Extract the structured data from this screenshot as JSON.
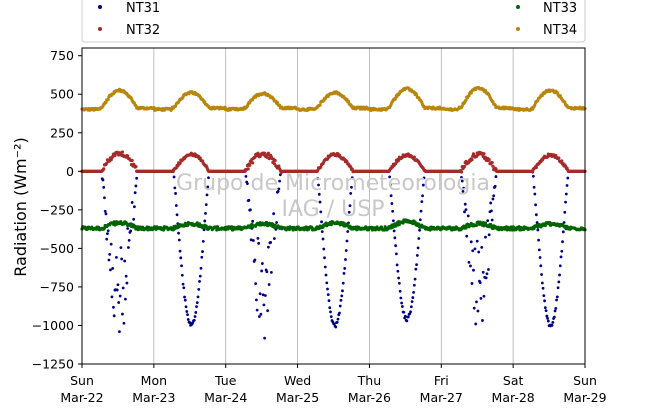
{
  "chart_data": {
    "type": "scatter",
    "ylabel": "Radiation (Wm⁻²)",
    "ylim": [
      -1250,
      800
    ],
    "yticks": [
      -1250,
      -1000,
      -750,
      -500,
      -250,
      0,
      250,
      500,
      750
    ],
    "ytick_labels": [
      "−1250",
      "−1000",
      "−750",
      "−500",
      "−250",
      "0",
      "250",
      "500",
      "750"
    ],
    "xlim_days": [
      0,
      7
    ],
    "xticks": [
      {
        "day": "Sun",
        "date": "Mar-22"
      },
      {
        "day": "Mon",
        "date": "Mar-23"
      },
      {
        "day": "Tue",
        "date": "Mar-24"
      },
      {
        "day": "Wed",
        "date": "Mar-25"
      },
      {
        "day": "Thu",
        "date": "Mar-26"
      },
      {
        "day": "Fri",
        "date": "Mar-27"
      },
      {
        "day": "Sat",
        "date": "Mar-28"
      },
      {
        "day": "Sun",
        "date": "Mar-29"
      }
    ],
    "grid_x": true,
    "legend_position": "top",
    "watermark": [
      "Grupo de Micrometeorologia",
      "IAG / USP"
    ],
    "series": [
      {
        "name": "NT31",
        "color": "#00008b",
        "night_value": 0,
        "noon_min": [
          -1100,
          -1000,
          -1080,
          -1000,
          -960,
          -1000,
          -1000
        ]
      },
      {
        "name": "NT32",
        "color": "#a52a2a",
        "night_value": 0,
        "noon_max": [
          120,
          110,
          115,
          110,
          105,
          110,
          105
        ]
      },
      {
        "name": "NT33",
        "color": "#006400",
        "base_value": -370,
        "noon_value": [
          -335,
          -340,
          -340,
          -335,
          -325,
          -340,
          -340
        ]
      },
      {
        "name": "NT34",
        "color": "#b8860b",
        "night_value": 410,
        "noon_max": [
          525,
          510,
          505,
          510,
          535,
          540,
          525
        ]
      }
    ]
  }
}
